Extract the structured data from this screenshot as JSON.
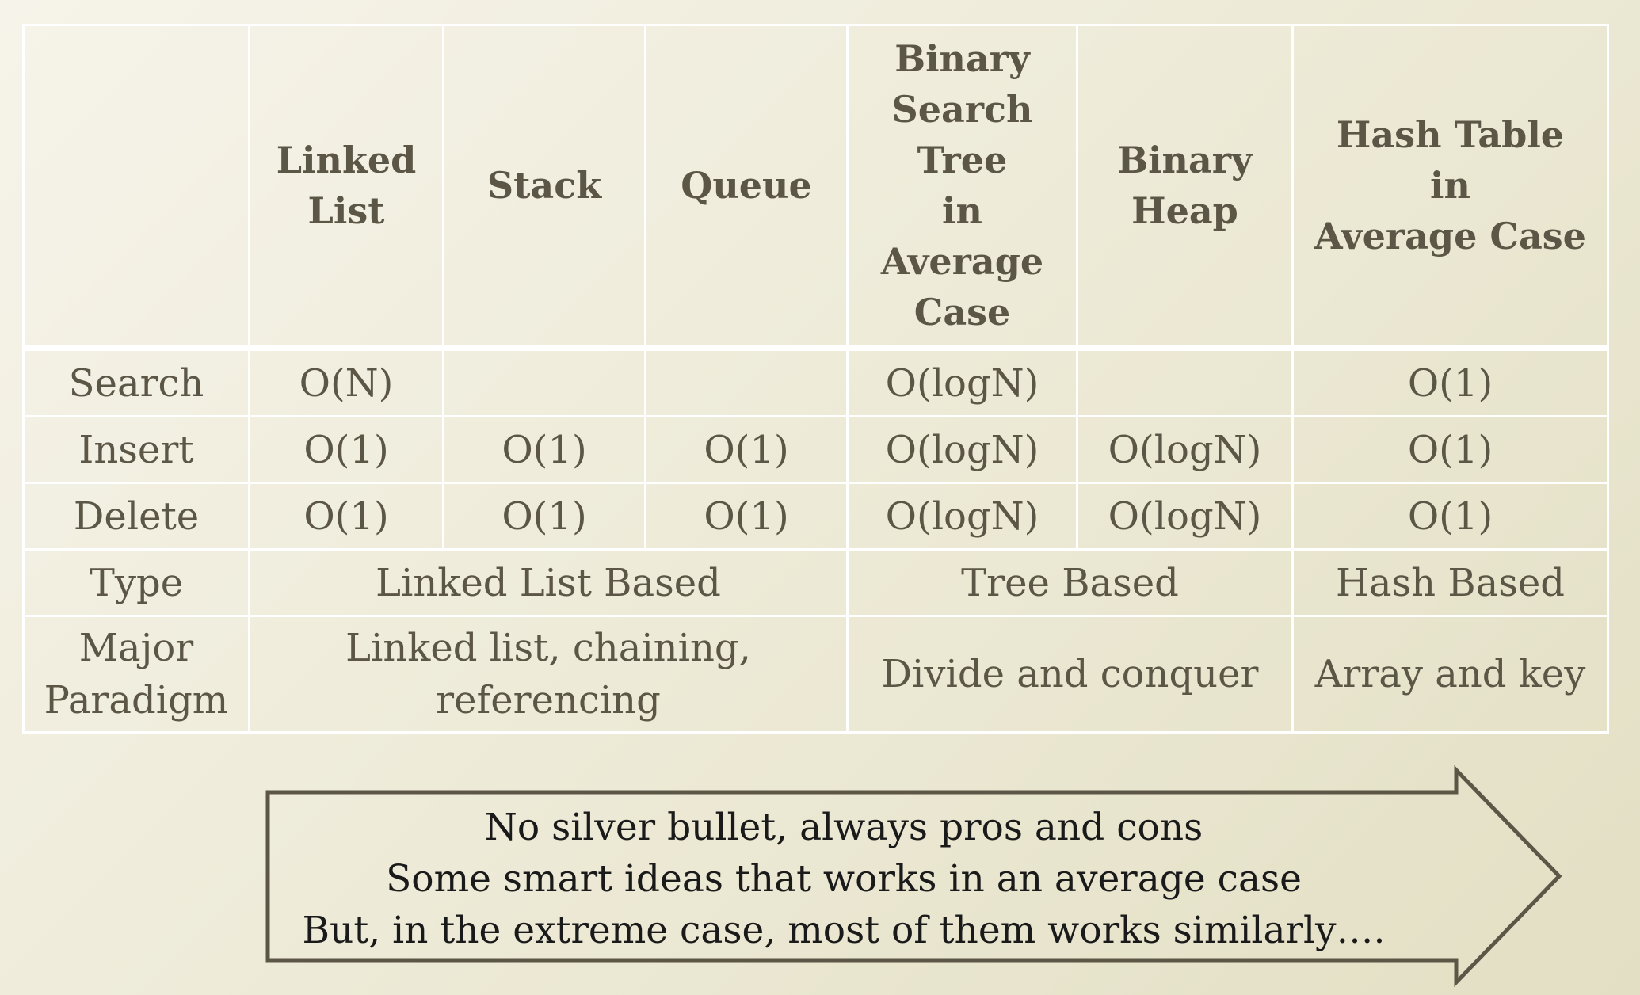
{
  "table": {
    "headers": [
      "",
      "Linked\nList",
      "Stack",
      "Queue",
      "Binary\nSearch\nTree\nin\nAverage\nCase",
      "Binary\nHeap",
      "Hash Table\nin\nAverage Case"
    ],
    "operations": [
      {
        "label": "Search",
        "cells": [
          "O(N)",
          "",
          "",
          "O(logN)",
          "",
          "O(1)"
        ]
      },
      {
        "label": "Insert",
        "cells": [
          "O(1)",
          "O(1)",
          "O(1)",
          "O(logN)",
          "O(logN)",
          "O(1)"
        ]
      },
      {
        "label": "Delete",
        "cells": [
          "O(1)",
          "O(1)",
          "O(1)",
          "O(logN)",
          "O(logN)",
          "O(1)"
        ]
      }
    ],
    "type_row": {
      "label": "Type",
      "linked": "Linked List Based",
      "tree": "Tree Based",
      "hash": "Hash Based"
    },
    "paradigm_row": {
      "label": "Major\nParadigm",
      "linked": "Linked list, chaining,\nreferencing",
      "tree": "Divide and conquer",
      "hash": "Array and key"
    }
  },
  "callout": {
    "lines": [
      "No silver bullet, always pros and cons",
      "Some smart ideas that works in an average case",
      "But, in the extreme case, most of them works similarly…."
    ]
  },
  "colors": {
    "background": "#eeebd9",
    "text": "#5c5646",
    "grid": "#ffffff",
    "arrow_stroke": "#5c5646"
  }
}
